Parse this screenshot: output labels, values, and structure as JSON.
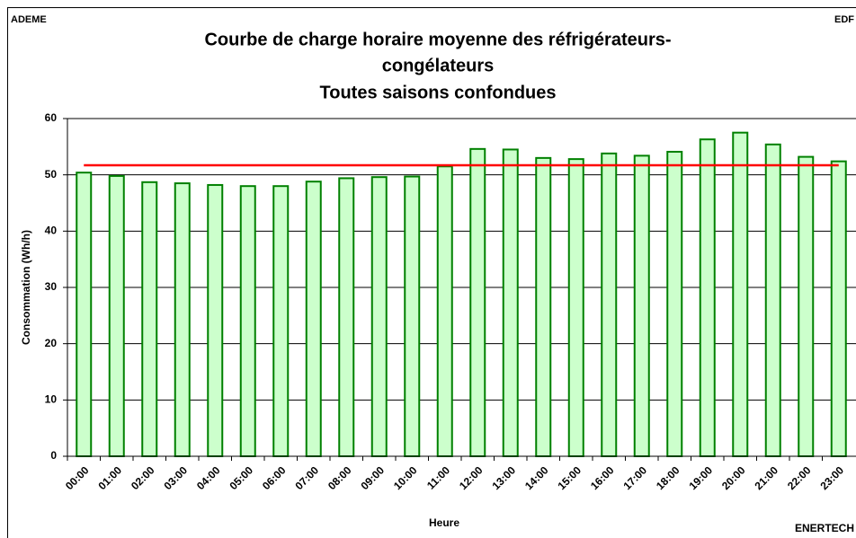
{
  "chart_data": {
    "type": "bar",
    "title": [
      "Courbe de charge horaire moyenne des réfrigérateurs-",
      "congélateurs",
      "Toutes saisons confondues"
    ],
    "corner_labels": [
      "ADEME",
      "EDF",
      "ENERTECH"
    ],
    "x_label": "Heure",
    "y_label": "Consommation (Wh/h)",
    "categories": [
      "00:00",
      "01:00",
      "02:00",
      "03:00",
      "04:00",
      "05:00",
      "06:00",
      "07:00",
      "08:00",
      "09:00",
      "10:00",
      "11:00",
      "12:00",
      "13:00",
      "14:00",
      "15:00",
      "16:00",
      "17:00",
      "18:00",
      "19:00",
      "20:00",
      "21:00",
      "22:00",
      "23:00"
    ],
    "values": [
      50.4,
      49.8,
      48.7,
      48.5,
      48.2,
      48.0,
      48.0,
      48.8,
      49.4,
      49.6,
      49.7,
      51.5,
      54.6,
      54.5,
      53.0,
      52.8,
      53.8,
      53.4,
      54.1,
      56.3,
      57.5,
      55.4,
      53.2,
      52.4
    ],
    "color": "#ccffcc",
    "edge_color": "#008000",
    "reference_line": {
      "value": 51.7,
      "color": "#ff0000"
    },
    "ylim": [
      0,
      60
    ],
    "yticks": [
      0,
      10,
      20,
      30,
      40,
      50,
      60
    ],
    "grid": true
  }
}
